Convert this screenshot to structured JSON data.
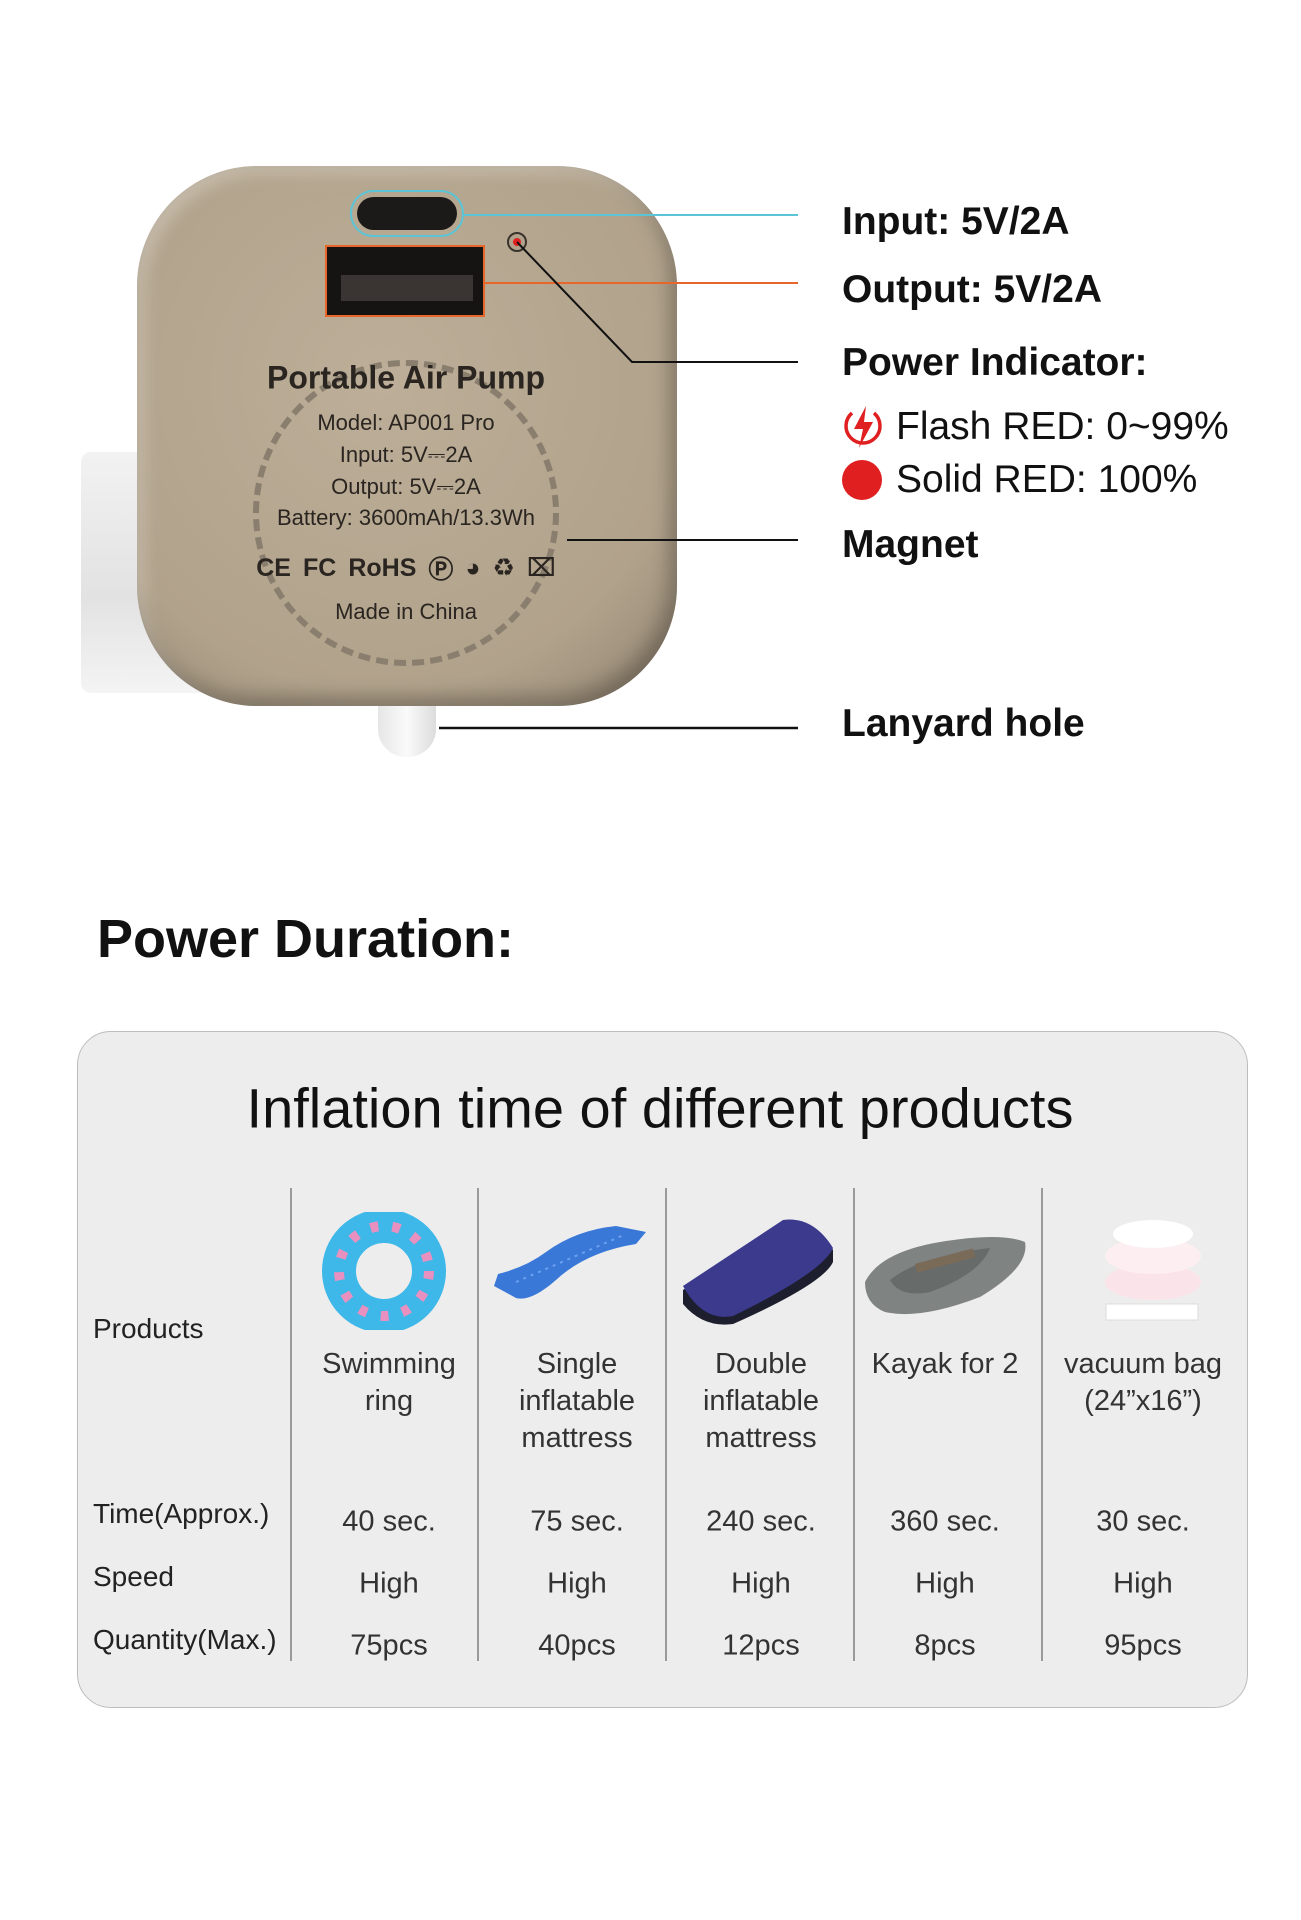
{
  "pump_label": {
    "title": "Portable Air Pump",
    "model": "Model:  AP001 Pro",
    "input": "Input:  5V⎓2A",
    "output": "Output:  5V⎓2A",
    "battery": "Battery:  3600mAh/13.3Wh",
    "certifications": [
      "CE",
      "FC",
      "RoHS"
    ],
    "made_in": "Made in China"
  },
  "callouts": {
    "input": "Input: 5V/2A",
    "output": "Output: 5V/2A",
    "power_indicator": "Power Indicator:",
    "flash": "Flash RED: 0~99%",
    "solid": "Solid RED: 100%",
    "magnet": "Magnet",
    "lanyard": "Lanyard hole"
  },
  "colors": {
    "input_line": "#5bc4d6",
    "output_line": "#e8662a",
    "indicator_red": "#e02020",
    "pump_body": "#b5a792"
  },
  "section_title": "Power Duration:",
  "table": {
    "title": "Inflation time of different products",
    "row_labels": {
      "products": "Products",
      "time": "Time(Approx.)",
      "speed": "Speed",
      "quantity": "Quantity(Max.)"
    },
    "columns": [
      {
        "name": [
          "Swimming",
          "ring"
        ],
        "time": "40 sec.",
        "speed": "High",
        "quantity": "75pcs",
        "icon": "swimming-ring"
      },
      {
        "name": [
          "Single",
          "inflatable",
          "mattress"
        ],
        "time": "75 sec.",
        "speed": "High",
        "quantity": "40pcs",
        "icon": "single-mattress"
      },
      {
        "name": [
          "Double",
          "inflatable",
          "mattress"
        ],
        "time": "240 sec.",
        "speed": "High",
        "quantity": "12pcs",
        "icon": "double-mattress"
      },
      {
        "name": [
          "Kayak for 2"
        ],
        "time": "360 sec.",
        "speed": "High",
        "quantity": "8pcs",
        "icon": "kayak"
      },
      {
        "name": [
          "vacuum bag",
          "(24”x16”)"
        ],
        "time": "30 sec.",
        "speed": "High",
        "quantity": "95pcs",
        "icon": "vacuum-bag"
      }
    ]
  }
}
